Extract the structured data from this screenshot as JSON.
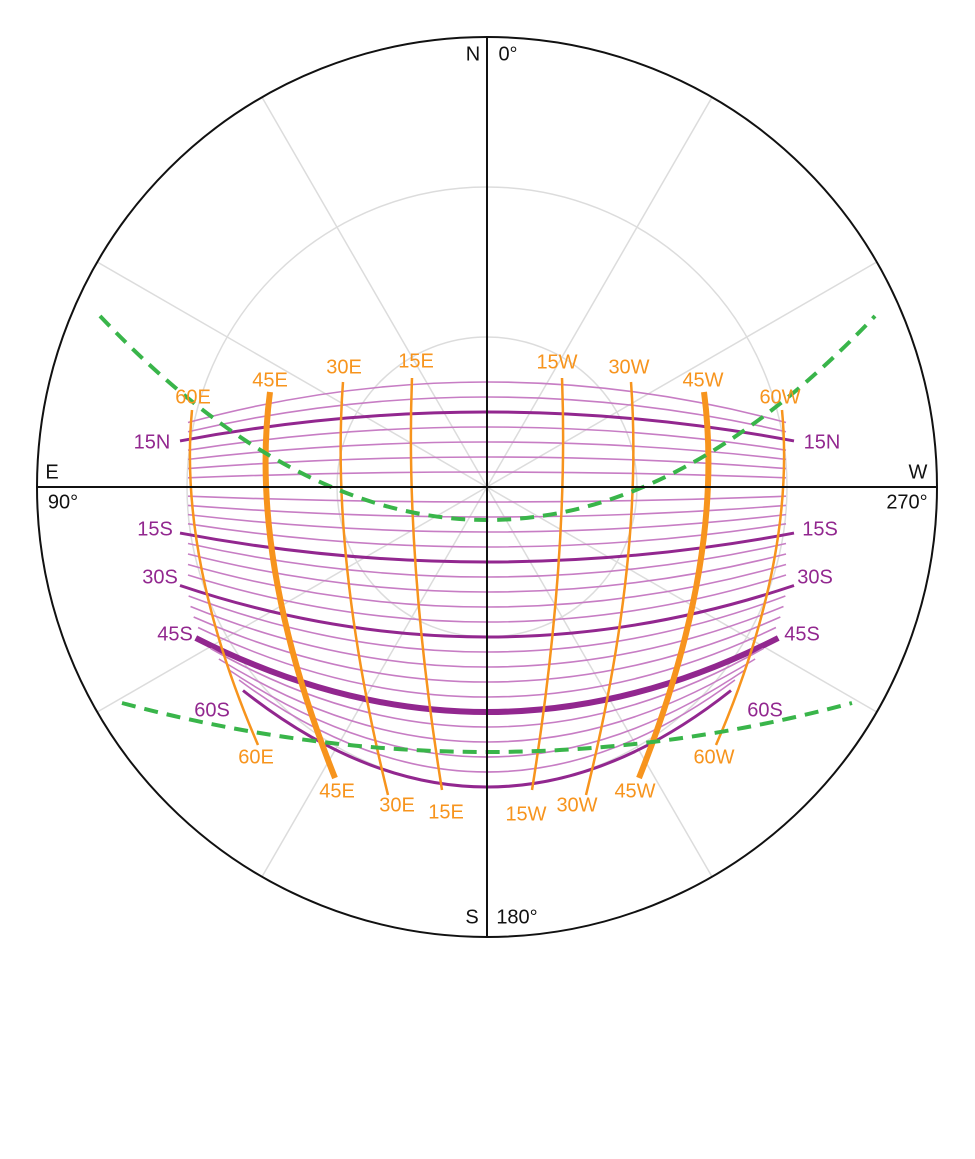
{
  "compass": {
    "north": "N",
    "north_degrees": "0°",
    "east": "E",
    "east_degrees": "90°",
    "west": "W",
    "west_degrees": "270°",
    "south": "S",
    "south_degrees": "180°"
  },
  "hour_lines": {
    "top": [
      "60E",
      "45E",
      "30E",
      "15E",
      "15W",
      "30W",
      "45W",
      "60W"
    ],
    "bottom": [
      "60E",
      "45E",
      "30E",
      "15E",
      "15W",
      "30W",
      "45W",
      "60W"
    ]
  },
  "declination_lines": {
    "left": [
      "15N",
      "15S",
      "30S",
      "45S",
      "60S"
    ],
    "right": [
      "15N",
      "15S",
      "30S",
      "45S",
      "60S"
    ]
  }
}
